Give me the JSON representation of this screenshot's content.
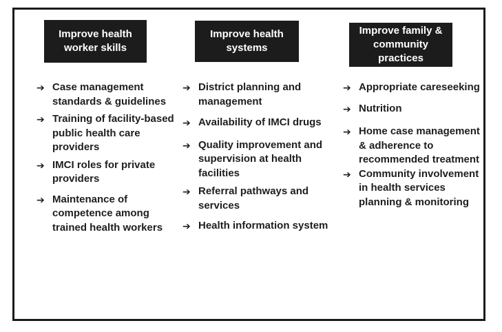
{
  "columns": [
    {
      "header": "Improve health worker skills",
      "items": [
        "Case management standards & guidelines",
        "Training of facility-based public health care providers",
        "IMCI roles for private providers",
        "Maintenance of competence among trained health workers"
      ]
    },
    {
      "header": "Improve health systems",
      "items": [
        "District planning and management",
        "Availability of IMCI drugs",
        "Quality improvement and supervision at health facilities",
        "Referral pathways and services",
        "Health information system"
      ]
    },
    {
      "header": "Improve family & community practices",
      "items": [
        "Appropriate careseeking",
        "Nutrition",
        "Home case management & adherence to recommended treatment",
        "Community involvement in health services planning & monitoring"
      ]
    }
  ],
  "arrow_icon": "right-arrow-icon"
}
